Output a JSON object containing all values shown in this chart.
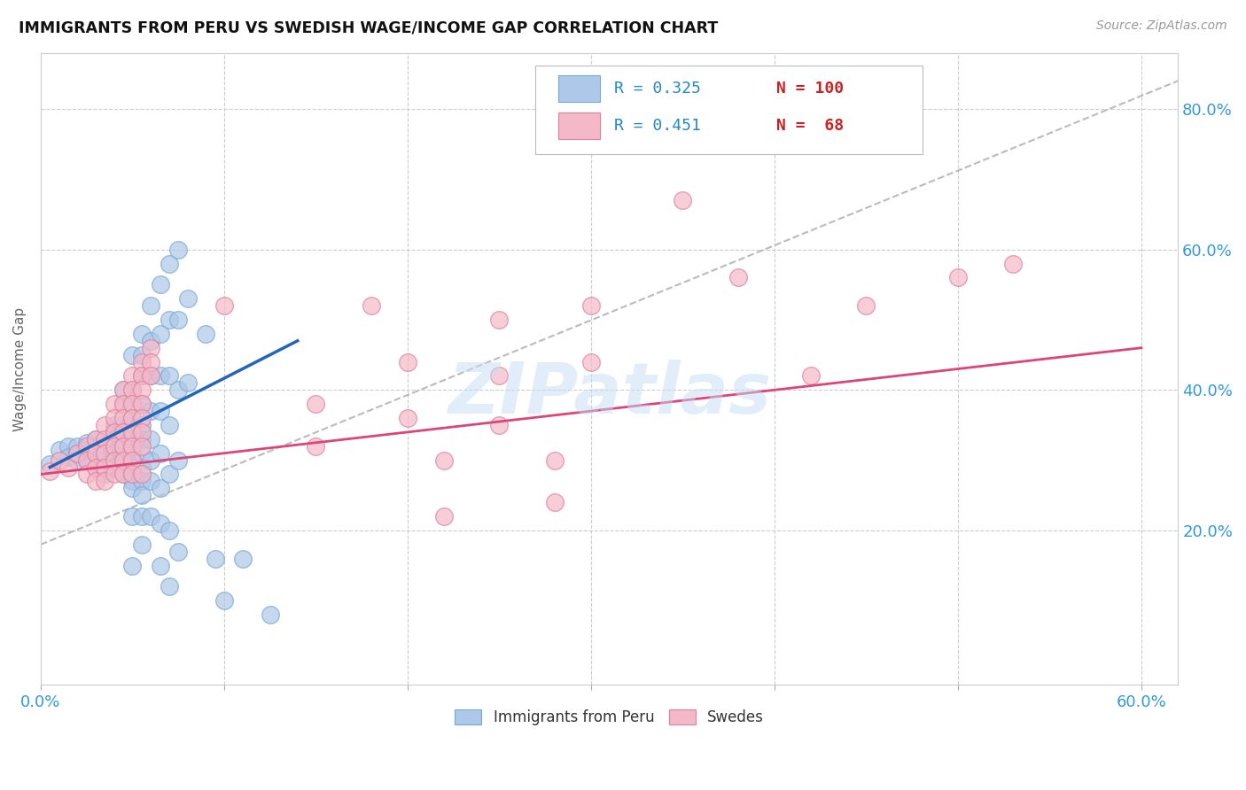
{
  "title": "IMMIGRANTS FROM PERU VS SWEDISH WAGE/INCOME GAP CORRELATION CHART",
  "source": "Source: ZipAtlas.com",
  "ylabel": "Wage/Income Gap",
  "watermark": "ZIPatlas",
  "legend_blue_R": "0.325",
  "legend_blue_N": "100",
  "legend_pink_R": "0.451",
  "legend_pink_N": "68",
  "legend_label_blue": "Immigrants from Peru",
  "legend_label_pink": "Swedes",
  "blue_color": "#adc8e8",
  "blue_edge_color": "#7aa8d4",
  "pink_color": "#f5b8c8",
  "pink_edge_color": "#e080a0",
  "blue_line_color": "#2266bb",
  "pink_line_color": "#dd4477",
  "dashed_line_color": "#aaaaaa",
  "title_color": "#111111",
  "axis_label_color": "#3399dd",
  "legend_R_color": "#2288cc",
  "legend_N_color": "#cc2222",
  "blue_scatter": [
    [
      0.5,
      29.5
    ],
    [
      1.0,
      31.5
    ],
    [
      1.5,
      32.0
    ],
    [
      1.5,
      30.5
    ],
    [
      2.0,
      31.0
    ],
    [
      2.0,
      32.0
    ],
    [
      2.0,
      30.0
    ],
    [
      2.5,
      32.5
    ],
    [
      2.5,
      31.5
    ],
    [
      2.5,
      30.0
    ],
    [
      3.0,
      33.0
    ],
    [
      3.0,
      32.0
    ],
    [
      3.0,
      31.0
    ],
    [
      3.0,
      29.0
    ],
    [
      3.5,
      32.5
    ],
    [
      3.5,
      32.0
    ],
    [
      3.5,
      31.0
    ],
    [
      3.5,
      30.0
    ],
    [
      3.5,
      28.0
    ],
    [
      4.0,
      35.0
    ],
    [
      4.0,
      34.0
    ],
    [
      4.0,
      33.0
    ],
    [
      4.0,
      32.0
    ],
    [
      4.0,
      31.0
    ],
    [
      4.0,
      30.0
    ],
    [
      4.0,
      29.0
    ],
    [
      4.5,
      40.0
    ],
    [
      4.5,
      38.0
    ],
    [
      4.5,
      35.0
    ],
    [
      4.5,
      34.0
    ],
    [
      4.5,
      33.0
    ],
    [
      4.5,
      32.0
    ],
    [
      4.5,
      31.0
    ],
    [
      4.5,
      30.0
    ],
    [
      4.5,
      29.0
    ],
    [
      4.5,
      28.0
    ],
    [
      5.0,
      45.0
    ],
    [
      5.0,
      40.0
    ],
    [
      5.0,
      38.0
    ],
    [
      5.0,
      36.0
    ],
    [
      5.0,
      35.0
    ],
    [
      5.0,
      34.0
    ],
    [
      5.0,
      33.0
    ],
    [
      5.0,
      32.0
    ],
    [
      5.0,
      31.0
    ],
    [
      5.0,
      30.0
    ],
    [
      5.0,
      29.0
    ],
    [
      5.0,
      28.0
    ],
    [
      5.0,
      27.0
    ],
    [
      5.0,
      26.0
    ],
    [
      5.0,
      22.0
    ],
    [
      5.0,
      15.0
    ],
    [
      5.5,
      48.0
    ],
    [
      5.5,
      45.0
    ],
    [
      5.5,
      42.0
    ],
    [
      5.5,
      38.0
    ],
    [
      5.5,
      35.0
    ],
    [
      5.5,
      33.0
    ],
    [
      5.5,
      31.0
    ],
    [
      5.5,
      29.0
    ],
    [
      5.5,
      27.0
    ],
    [
      5.5,
      25.0
    ],
    [
      5.5,
      22.0
    ],
    [
      5.5,
      18.0
    ],
    [
      6.0,
      52.0
    ],
    [
      6.0,
      47.0
    ],
    [
      6.0,
      42.0
    ],
    [
      6.0,
      37.0
    ],
    [
      6.0,
      33.0
    ],
    [
      6.0,
      30.0
    ],
    [
      6.0,
      27.0
    ],
    [
      6.0,
      22.0
    ],
    [
      6.5,
      55.0
    ],
    [
      6.5,
      48.0
    ],
    [
      6.5,
      42.0
    ],
    [
      6.5,
      37.0
    ],
    [
      6.5,
      31.0
    ],
    [
      6.5,
      26.0
    ],
    [
      6.5,
      21.0
    ],
    [
      6.5,
      15.0
    ],
    [
      7.0,
      58.0
    ],
    [
      7.0,
      50.0
    ],
    [
      7.0,
      42.0
    ],
    [
      7.0,
      35.0
    ],
    [
      7.0,
      28.0
    ],
    [
      7.0,
      20.0
    ],
    [
      7.0,
      12.0
    ],
    [
      7.5,
      60.0
    ],
    [
      7.5,
      50.0
    ],
    [
      7.5,
      40.0
    ],
    [
      7.5,
      30.0
    ],
    [
      7.5,
      17.0
    ],
    [
      8.0,
      53.0
    ],
    [
      8.0,
      41.0
    ],
    [
      9.0,
      48.0
    ],
    [
      9.5,
      16.0
    ],
    [
      10.0,
      10.0
    ],
    [
      11.0,
      16.0
    ],
    [
      12.5,
      8.0
    ]
  ],
  "pink_scatter": [
    [
      0.5,
      28.5
    ],
    [
      1.0,
      30.0
    ],
    [
      1.5,
      29.0
    ],
    [
      2.0,
      31.0
    ],
    [
      2.5,
      32.0
    ],
    [
      2.5,
      30.0
    ],
    [
      2.5,
      28.0
    ],
    [
      3.0,
      33.0
    ],
    [
      3.0,
      31.0
    ],
    [
      3.0,
      29.0
    ],
    [
      3.0,
      27.0
    ],
    [
      3.5,
      35.0
    ],
    [
      3.5,
      33.0
    ],
    [
      3.5,
      31.0
    ],
    [
      3.5,
      29.0
    ],
    [
      3.5,
      27.0
    ],
    [
      4.0,
      38.0
    ],
    [
      4.0,
      36.0
    ],
    [
      4.0,
      34.0
    ],
    [
      4.0,
      32.0
    ],
    [
      4.0,
      30.0
    ],
    [
      4.0,
      28.0
    ],
    [
      4.5,
      40.0
    ],
    [
      4.5,
      38.0
    ],
    [
      4.5,
      36.0
    ],
    [
      4.5,
      34.0
    ],
    [
      4.5,
      32.0
    ],
    [
      4.5,
      30.0
    ],
    [
      4.5,
      28.0
    ],
    [
      5.0,
      42.0
    ],
    [
      5.0,
      40.0
    ],
    [
      5.0,
      38.0
    ],
    [
      5.0,
      36.0
    ],
    [
      5.0,
      34.0
    ],
    [
      5.0,
      32.0
    ],
    [
      5.0,
      30.0
    ],
    [
      5.0,
      28.0
    ],
    [
      5.5,
      44.0
    ],
    [
      5.5,
      42.0
    ],
    [
      5.5,
      40.0
    ],
    [
      5.5,
      38.0
    ],
    [
      5.5,
      36.0
    ],
    [
      5.5,
      34.0
    ],
    [
      5.5,
      32.0
    ],
    [
      5.5,
      28.0
    ],
    [
      6.0,
      46.0
    ],
    [
      6.0,
      44.0
    ],
    [
      6.0,
      42.0
    ],
    [
      10.0,
      52.0
    ],
    [
      15.0,
      38.0
    ],
    [
      15.0,
      32.0
    ],
    [
      18.0,
      52.0
    ],
    [
      20.0,
      44.0
    ],
    [
      20.0,
      36.0
    ],
    [
      22.0,
      30.0
    ],
    [
      22.0,
      22.0
    ],
    [
      25.0,
      50.0
    ],
    [
      25.0,
      42.0
    ],
    [
      25.0,
      35.0
    ],
    [
      28.0,
      30.0
    ],
    [
      28.0,
      24.0
    ],
    [
      30.0,
      52.0
    ],
    [
      30.0,
      44.0
    ],
    [
      35.0,
      67.0
    ],
    [
      38.0,
      56.0
    ],
    [
      42.0,
      42.0
    ],
    [
      45.0,
      52.0
    ],
    [
      50.0,
      56.0
    ],
    [
      53.0,
      58.0
    ]
  ],
  "xlim": [
    0.0,
    62.0
  ],
  "ylim": [
    -2.0,
    88.0
  ],
  "xtick_positions": [
    0.0,
    10.0,
    20.0,
    30.0,
    40.0,
    50.0,
    60.0
  ],
  "ytick_positions": [
    20.0,
    40.0,
    60.0,
    80.0
  ],
  "ytick_labels": [
    "20.0%",
    "40.0%",
    "60.0%",
    "80.0%"
  ],
  "blue_trend_x": [
    0.5,
    14.0
  ],
  "blue_trend_y": [
    29.0,
    47.0
  ],
  "pink_trend_x": [
    0.0,
    60.0
  ],
  "pink_trend_y": [
    28.0,
    46.0
  ],
  "dashed_trend_x": [
    0.0,
    62.0
  ],
  "dashed_trend_y": [
    18.0,
    84.0
  ]
}
